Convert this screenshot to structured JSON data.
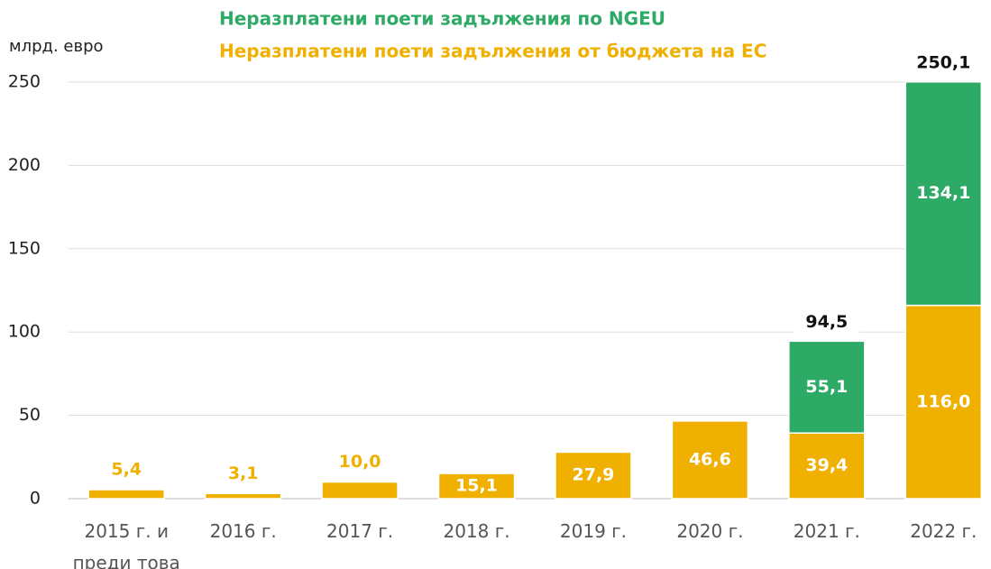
{
  "chart_data": {
    "type": "stacked-bar",
    "y_axis_label": "млрд. евро",
    "categories": [
      "2015 г. и\nпреди това",
      "2016 г.",
      "2017 г.",
      "2018 г.",
      "2019 г.",
      "2020 г.",
      "2021 г.",
      "2022 г."
    ],
    "series": [
      {
        "name": "Неразплатени поети задължения от бюджета на ЕС",
        "color": "#f0b000",
        "values": [
          5.4,
          3.1,
          10.0,
          15.1,
          27.9,
          46.6,
          39.4,
          116.0
        ],
        "value_labels": [
          "5,4",
          "3,1",
          "10,0",
          "15,1",
          "27,9",
          "46,6",
          "39,4",
          "116,0"
        ]
      },
      {
        "name": "Неразплатени поети задължения по NGEU",
        "color": "#2eaa67",
        "values": [
          null,
          null,
          null,
          null,
          null,
          null,
          55.1,
          134.1
        ],
        "value_labels": [
          null,
          null,
          null,
          null,
          null,
          null,
          "55,1",
          "134,1"
        ]
      }
    ],
    "totals": {
      "values": [
        null,
        null,
        null,
        null,
        null,
        null,
        94.5,
        250.1
      ],
      "value_labels": [
        null,
        null,
        null,
        null,
        null,
        null,
        "94,5",
        "250,1"
      ]
    },
    "ylim": [
      0,
      250
    ],
    "yticks": [
      0,
      50,
      100,
      150,
      200,
      250
    ],
    "grid": true
  }
}
